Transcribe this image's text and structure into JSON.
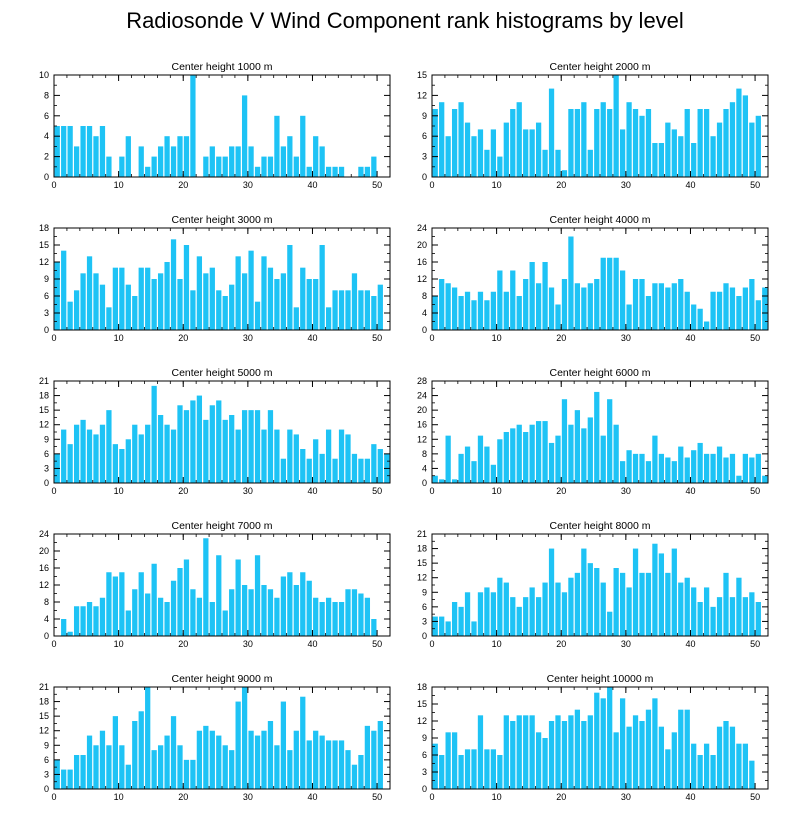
{
  "title": "Radiosonde V Wind Component rank histograms by level",
  "bar_color": "#1ec3f5",
  "chart_data": [
    {
      "type": "bar",
      "title": "Center height 1000 m",
      "xlim": [
        0,
        52
      ],
      "ylim": [
        0,
        10
      ],
      "xticks": [
        0,
        10,
        20,
        30,
        40,
        50
      ],
      "yticks": [
        0,
        2,
        4,
        6,
        8,
        10
      ],
      "values": [
        5,
        5,
        5,
        3,
        5,
        5,
        4,
        5,
        2,
        0,
        2,
        4,
        0,
        3,
        1,
        2,
        3,
        4,
        3,
        4,
        4,
        10,
        0,
        2,
        3,
        2,
        2,
        3,
        3,
        8,
        3,
        1,
        2,
        2,
        6,
        3,
        4,
        2,
        6,
        1,
        4,
        3,
        1,
        1,
        1,
        0,
        0,
        1,
        1,
        2,
        0,
        0
      ]
    },
    {
      "type": "bar",
      "title": "Center height 2000 m",
      "xlim": [
        0,
        52
      ],
      "ylim": [
        0,
        15
      ],
      "xticks": [
        0,
        10,
        20,
        30,
        40,
        50
      ],
      "yticks": [
        0,
        3,
        6,
        9,
        12,
        15
      ],
      "values": [
        10,
        11,
        6,
        10,
        11,
        8,
        6,
        7,
        4,
        7,
        3,
        8,
        10,
        11,
        7,
        7,
        8,
        4,
        13,
        4,
        1,
        10,
        10,
        11,
        4,
        10,
        11,
        10,
        15,
        7,
        11,
        10,
        9,
        10,
        5,
        5,
        8,
        7,
        6,
        10,
        5,
        10,
        10,
        6,
        8,
        10,
        11,
        13,
        12,
        8,
        9,
        0
      ]
    },
    {
      "type": "bar",
      "title": "Center height 3000 m",
      "xlim": [
        0,
        52
      ],
      "ylim": [
        0,
        18
      ],
      "xticks": [
        0,
        10,
        20,
        30,
        40,
        50
      ],
      "yticks": [
        0,
        3,
        6,
        9,
        12,
        15,
        18
      ],
      "values": [
        12,
        14,
        5,
        7,
        10,
        13,
        10,
        8,
        4,
        11,
        11,
        8,
        6,
        11,
        11,
        9,
        10,
        12,
        16,
        9,
        15,
        7,
        13,
        10,
        11,
        7,
        6,
        8,
        13,
        10,
        14,
        5,
        13,
        11,
        9,
        10,
        15,
        4,
        11,
        9,
        9,
        15,
        4,
        7,
        7,
        7,
        10,
        7,
        7,
        6,
        8,
        0
      ]
    },
    {
      "type": "bar",
      "title": "Center height 4000 m",
      "xlim": [
        0,
        52
      ],
      "ylim": [
        0,
        24
      ],
      "xticks": [
        0,
        10,
        20,
        30,
        40,
        50
      ],
      "yticks": [
        0,
        4,
        8,
        12,
        16,
        20,
        24
      ],
      "values": [
        8,
        12,
        11,
        10,
        8,
        9,
        7,
        9,
        7,
        9,
        14,
        9,
        14,
        8,
        12,
        16,
        11,
        16,
        10,
        6,
        12,
        22,
        11,
        10,
        11,
        12,
        17,
        17,
        17,
        14,
        6,
        12,
        12,
        8,
        11,
        11,
        10,
        11,
        12,
        9,
        6,
        5,
        2,
        9,
        9,
        11,
        10,
        8,
        10,
        12,
        7,
        10
      ]
    },
    {
      "type": "bar",
      "title": "Center height 5000 m",
      "xlim": [
        0,
        52
      ],
      "ylim": [
        0,
        21
      ],
      "xticks": [
        0,
        10,
        20,
        30,
        40,
        50
      ],
      "yticks": [
        0,
        3,
        6,
        9,
        12,
        15,
        18,
        21
      ],
      "values": [
        6,
        11,
        8,
        12,
        13,
        11,
        10,
        12,
        15,
        8,
        7,
        9,
        12,
        10,
        12,
        20,
        14,
        12,
        11,
        16,
        15,
        17,
        18,
        13,
        16,
        17,
        13,
        14,
        11,
        15,
        15,
        15,
        11,
        15,
        11,
        5,
        11,
        10,
        7,
        5,
        9,
        6,
        11,
        5,
        11,
        10,
        6,
        5,
        5,
        8,
        7,
        6
      ]
    },
    {
      "type": "bar",
      "title": "Center height 6000 m",
      "xlim": [
        0,
        52
      ],
      "ylim": [
        0,
        28
      ],
      "xticks": [
        0,
        10,
        20,
        30,
        40,
        50
      ],
      "yticks": [
        0,
        4,
        8,
        12,
        16,
        20,
        24,
        28
      ],
      "values": [
        2,
        1,
        13,
        1,
        8,
        10,
        6,
        13,
        10,
        5,
        12,
        14,
        15,
        16,
        14,
        16,
        17,
        17,
        11,
        13,
        23,
        16,
        20,
        15,
        18,
        25,
        13,
        23,
        16,
        6,
        9,
        8,
        8,
        6,
        13,
        8,
        7,
        6,
        10,
        7,
        9,
        11,
        8,
        8,
        10,
        7,
        8,
        2,
        8,
        7,
        8,
        2
      ]
    },
    {
      "type": "bar",
      "title": "Center height 7000 m",
      "xlim": [
        0,
        52
      ],
      "ylim": [
        0,
        24
      ],
      "xticks": [
        0,
        10,
        20,
        30,
        40,
        50
      ],
      "yticks": [
        0,
        4,
        8,
        12,
        16,
        20,
        24
      ],
      "values": [
        0,
        4,
        1,
        7,
        7,
        8,
        7,
        9,
        15,
        14,
        15,
        6,
        11,
        15,
        10,
        17,
        9,
        8,
        13,
        16,
        18,
        11,
        9,
        23,
        8,
        19,
        6,
        11,
        18,
        12,
        11,
        19,
        12,
        11,
        9,
        14,
        15,
        12,
        15,
        13,
        9,
        8,
        9,
        8,
        8,
        11,
        11,
        10,
        9,
        4,
        0,
        0
      ]
    },
    {
      "type": "bar",
      "title": "Center height 8000 m",
      "xlim": [
        0,
        52
      ],
      "ylim": [
        0,
        21
      ],
      "xticks": [
        0,
        10,
        20,
        30,
        40,
        50
      ],
      "yticks": [
        0,
        3,
        6,
        9,
        12,
        15,
        18,
        21
      ],
      "values": [
        4,
        4,
        3,
        7,
        6,
        9,
        3,
        9,
        10,
        9,
        12,
        11,
        8,
        6,
        8,
        10,
        8,
        11,
        18,
        11,
        9,
        12,
        13,
        18,
        15,
        14,
        11,
        5,
        14,
        13,
        10,
        18,
        13,
        13,
        19,
        17,
        13,
        18,
        11,
        12,
        10,
        7,
        10,
        6,
        8,
        13,
        8,
        12,
        8,
        9,
        7,
        0
      ]
    },
    {
      "type": "bar",
      "title": "Center height 9000 m",
      "xlim": [
        0,
        52
      ],
      "ylim": [
        0,
        21
      ],
      "xticks": [
        0,
        10,
        20,
        30,
        40,
        50
      ],
      "yticks": [
        0,
        3,
        6,
        9,
        12,
        15,
        18,
        21
      ],
      "values": [
        6,
        4,
        4,
        7,
        7,
        11,
        9,
        12,
        9,
        15,
        9,
        5,
        14,
        16,
        21,
        8,
        9,
        11,
        15,
        9,
        6,
        6,
        12,
        13,
        12,
        11,
        9,
        8,
        18,
        21,
        12,
        11,
        12,
        14,
        9,
        18,
        8,
        12,
        19,
        10,
        12,
        11,
        10,
        10,
        10,
        8,
        5,
        7,
        13,
        12,
        14,
        0
      ]
    },
    {
      "type": "bar",
      "title": "Center height 10000 m",
      "xlim": [
        0,
        52
      ],
      "ylim": [
        0,
        18
      ],
      "xticks": [
        0,
        10,
        20,
        30,
        40,
        50
      ],
      "yticks": [
        0,
        3,
        6,
        9,
        12,
        15,
        18
      ],
      "values": [
        8,
        6,
        10,
        10,
        6,
        7,
        7,
        13,
        7,
        7,
        6,
        13,
        12,
        13,
        13,
        13,
        10,
        9,
        12,
        13,
        12,
        13,
        14,
        12,
        13,
        17,
        16,
        18,
        10,
        16,
        11,
        13,
        12,
        14,
        16,
        11,
        7,
        10,
        14,
        14,
        8,
        6,
        8,
        6,
        11,
        12,
        11,
        8,
        8,
        5,
        0,
        0
      ]
    }
  ]
}
